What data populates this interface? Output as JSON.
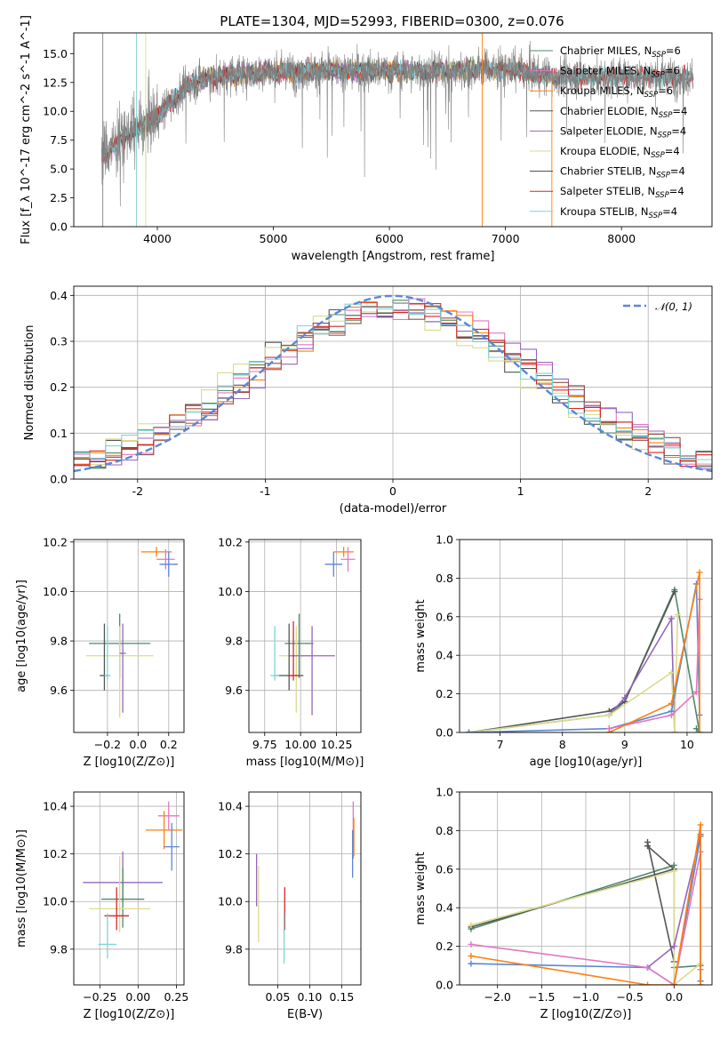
{
  "figure": {
    "title": "PLATE=1304, MJD=52993, FIBERID=0300, z=0.076"
  },
  "chart_data": [
    {
      "id": "spectrum",
      "type": "line",
      "xlabel": "wavelength [Angstrom, rest frame]",
      "ylabel": "Flux [f_λ 10^-17 erg cm^-2 s^-1 A^-1]",
      "xlim": [
        3280,
        8780
      ],
      "ylim": [
        0,
        16.8
      ],
      "xticks": [
        4000,
        5000,
        6000,
        7000,
        8000
      ],
      "yticks": [
        0.0,
        2.5,
        5.0,
        7.5,
        10.0,
        12.5,
        15.0
      ],
      "grid": false,
      "legend_position": "top-right",
      "continuum": {
        "x": [
          3520,
          3600,
          3700,
          3800,
          3900,
          4000,
          4100,
          4200,
          4300,
          4500,
          4700,
          5000,
          5300,
          5600,
          6000,
          6400,
          6800,
          7100,
          7300,
          7400
        ],
        "y": [
          6.0,
          6.8,
          7.8,
          8.3,
          8.9,
          9.6,
          10.6,
          11.6,
          12.5,
          13.0,
          13.2,
          13.4,
          13.5,
          13.5,
          13.5,
          13.5,
          13.7,
          13.6,
          13.2,
          13.0
        ]
      },
      "data_spectrum": {
        "name": "observed",
        "x_range": [
          3520,
          8620
        ],
        "color": "#808080"
      },
      "series": [
        {
          "name": "Chabrier MILES, N_SSP=6",
          "color": "#4d8a6b",
          "x_range": [
            3520,
            7410
          ]
        },
        {
          "name": "Salpeter MILES, N_SSP=6",
          "color": "#e377c2",
          "x_range": [
            3520,
            7410
          ]
        },
        {
          "name": "Kroupa MILES, N_SSP=6",
          "color": "#ff7f0e",
          "x_range": [
            3520,
            7410
          ]
        },
        {
          "name": "Chabrier ELODIE, N_SSP=4",
          "color": "#555555",
          "x_range": [
            3900,
            6800
          ]
        },
        {
          "name": "Salpeter ELODIE, N_SSP=4",
          "color": "#9467bd",
          "x_range": [
            3900,
            6800
          ]
        },
        {
          "name": "Kroupa ELODIE, N_SSP=4",
          "color": "#dbdb8d",
          "x_range": [
            3900,
            6800
          ]
        },
        {
          "name": "Chabrier STELIB, N_SSP=4",
          "color": "#444444",
          "x_range": [
            3520,
            8620
          ]
        },
        {
          "name": "Salpeter STELIB, N_SSP=4",
          "color": "#d62728",
          "x_range": [
            3520,
            8620
          ]
        },
        {
          "name": "Kroupa STELIB, N_SSP=4",
          "color": "#7fd4d8",
          "x_range": [
            3520,
            8620
          ]
        }
      ]
    },
    {
      "id": "residuals",
      "type": "histogram",
      "xlabel": "(data-model)/error",
      "ylabel": "Normed distribution",
      "xlim": [
        -2.5,
        2.5
      ],
      "ylim": [
        0,
        0.42
      ],
      "xticks": [
        -2,
        -1,
        0,
        1,
        2
      ],
      "yticks": [
        0.0,
        0.1,
        0.2,
        0.3,
        0.4
      ],
      "grid": true,
      "legend_position": "top-right",
      "reference_curve": {
        "name": "𝒩(0, 1)",
        "mean": 0,
        "sigma": 1,
        "color": "#5a87d6"
      },
      "bin_edges_range": [
        -2.5,
        2.5
      ],
      "bin_count": 40,
      "series": [
        {
          "color": "#4d8a6b",
          "shift": 0.0
        },
        {
          "color": "#e377c2",
          "shift": 0.1
        },
        {
          "color": "#ff7f0e",
          "shift": 0.05
        },
        {
          "color": "#555555",
          "shift": -0.05
        },
        {
          "color": "#9467bd",
          "shift": 0.12
        },
        {
          "color": "#dbdb8d",
          "shift": -0.1
        },
        {
          "color": "#8c564b",
          "shift": 0.08
        },
        {
          "color": "#d62728",
          "shift": 0.03
        },
        {
          "color": "#7fd4d8",
          "shift": -0.02
        }
      ]
    },
    {
      "id": "age-vs-Z",
      "type": "errorbar",
      "xlabel": "Z [log10(Z/Z⊙)]",
      "ylabel": "age [log10(age/yr)]",
      "xlim": [
        -0.42,
        0.3
      ],
      "ylim": [
        9.43,
        10.21
      ],
      "xticks": [
        -0.2,
        0.0,
        0.2
      ],
      "xticklabels": [
        "−0.2",
        "0.0",
        "0.2"
      ],
      "yticks": [
        9.6,
        9.8,
        10.0,
        10.2
      ],
      "grid": true,
      "points": [
        {
          "x": 0.12,
          "xerr": [
            0.1,
            0.1
          ],
          "y": 10.16,
          "yerr": [
            0.02,
            0.02
          ],
          "color": "#ff7f0e"
        },
        {
          "x": 0.18,
          "xerr": [
            0.06,
            0.06
          ],
          "y": 10.13,
          "yerr": [
            0.04,
            0.04
          ],
          "color": "#e377c2"
        },
        {
          "x": 0.2,
          "xerr": [
            0.06,
            0.06
          ],
          "y": 10.11,
          "yerr": [
            0.05,
            0.05
          ],
          "color": "#5a87d6"
        },
        {
          "x": -0.12,
          "xerr": [
            0.2,
            0.2
          ],
          "y": 9.79,
          "yerr": [
            0.14,
            0.12
          ],
          "color": "#4d8a6b"
        },
        {
          "x": -0.12,
          "xerr": [
            0.22,
            0.22
          ],
          "y": 9.74,
          "yerr": [
            0.25,
            0.12
          ],
          "color": "#dbdb8d"
        },
        {
          "x": -0.1,
          "xerr": [
            0.02,
            0.02
          ],
          "y": 9.75,
          "yerr": [
            0.24,
            0.12
          ],
          "color": "#9467bd"
        },
        {
          "x": -0.22,
          "xerr": [
            0.03,
            0.03
          ],
          "y": 9.66,
          "yerr": [
            0.06,
            0.21
          ],
          "color": "#555555"
        },
        {
          "x": -0.2,
          "xerr": [
            0.02,
            0.02
          ],
          "y": 9.66,
          "yerr": [
            0.02,
            0.2
          ],
          "color": "#7fd4d8"
        }
      ]
    },
    {
      "id": "age-vs-mass",
      "type": "errorbar",
      "xlabel": "mass [log10(M/M⊙)]",
      "ylabel": "",
      "xlim": [
        9.64,
        10.42
      ],
      "ylim": [
        9.43,
        10.21
      ],
      "xticks": [
        9.75,
        10.0,
        10.25
      ],
      "xticklabels": [
        "9.75",
        "10.00",
        "10.25"
      ],
      "yticks": [
        9.6,
        9.8,
        10.0,
        10.2
      ],
      "grid": true,
      "points": [
        {
          "x": 10.3,
          "xerr": [
            0.07,
            0.07
          ],
          "y": 10.16,
          "yerr": [
            0.02,
            0.02
          ],
          "color": "#ff7f0e"
        },
        {
          "x": 10.33,
          "xerr": [
            0.05,
            0.05
          ],
          "y": 10.13,
          "yerr": [
            0.05,
            0.05
          ],
          "color": "#e377c2"
        },
        {
          "x": 10.23,
          "xerr": [
            0.06,
            0.06
          ],
          "y": 10.11,
          "yerr": [
            0.05,
            0.05
          ],
          "color": "#5a87d6"
        },
        {
          "x": 9.99,
          "xerr": [
            0.1,
            0.1
          ],
          "y": 9.79,
          "yerr": [
            0.14,
            0.12
          ],
          "color": "#4d8a6b"
        },
        {
          "x": 9.97,
          "xerr": [
            0.12,
            0.12
          ],
          "y": 9.74,
          "yerr": [
            0.23,
            0.12
          ],
          "color": "#dbdb8d"
        },
        {
          "x": 10.08,
          "xerr": [
            0.16,
            0.16
          ],
          "y": 9.74,
          "yerr": [
            0.24,
            0.12
          ],
          "color": "#9467bd"
        },
        {
          "x": 9.92,
          "xerr": [
            0.1,
            0.1
          ],
          "y": 9.66,
          "yerr": [
            0.06,
            0.21
          ],
          "color": "#555555"
        },
        {
          "x": 9.95,
          "xerr": [
            0.04,
            0.04
          ],
          "y": 9.66,
          "yerr": [
            0.02,
            0.22
          ],
          "color": "#d62728"
        },
        {
          "x": 9.82,
          "xerr": [
            0.03,
            0.03
          ],
          "y": 9.66,
          "yerr": [
            0.02,
            0.2
          ],
          "color": "#7fd4d8"
        }
      ]
    },
    {
      "id": "weight-vs-age",
      "type": "line",
      "xlabel": "age [log10(age/yr)]",
      "ylabel": "mass weight",
      "xlim": [
        6.35,
        10.4
      ],
      "ylim": [
        0,
        1
      ],
      "xticks": [
        7,
        8,
        9,
        10
      ],
      "yticks": [
        0.0,
        0.2,
        0.4,
        0.6,
        0.8,
        1.0
      ],
      "grid": true,
      "series": [
        {
          "color": "#4d8a6b",
          "x": [
            6.5,
            8.75,
            9.0,
            9.8,
            10.2,
            10.15
          ],
          "y": [
            0.0,
            0.09,
            0.16,
            0.74,
            0.0,
            0.02
          ]
        },
        {
          "color": "#555555",
          "x": [
            6.5,
            8.75,
            9.0,
            9.8
          ],
          "y": [
            0.0,
            0.11,
            0.16,
            0.73
          ]
        },
        {
          "color": "#9467bd",
          "x": [
            8.75,
            9.0,
            9.75,
            9.8
          ],
          "y": [
            0.09,
            0.18,
            0.59,
            0.0
          ]
        },
        {
          "color": "#dbdb8d",
          "x": [
            6.5,
            8.75,
            9.75,
            9.8,
            9.85
          ],
          "y": [
            0.0,
            0.09,
            0.31,
            0.0,
            0.61
          ]
        },
        {
          "color": "#5a87d6",
          "x": [
            6.5,
            8.75,
            9.75,
            10.15,
            10.2
          ],
          "y": [
            0.0,
            0.02,
            0.11,
            0.77,
            0.09
          ]
        },
        {
          "color": "#e377c2",
          "x": [
            8.75,
            9.75,
            10.15,
            10.2
          ],
          "y": [
            0.02,
            0.09,
            0.21,
            0.69
          ]
        },
        {
          "color": "#ff7f0e",
          "x": [
            8.75,
            9.75,
            10.2,
            10.2
          ],
          "y": [
            0.0,
            0.15,
            0.83,
            0.0
          ]
        }
      ]
    },
    {
      "id": "mass-vs-Z",
      "type": "errorbar",
      "xlabel": "Z [log10(Z/Z⊙)]",
      "ylabel": "mass [log10(M/M⊙)]",
      "xlim": [
        -0.42,
        0.3
      ],
      "ylim": [
        9.65,
        10.46
      ],
      "xticks": [
        -0.25,
        0.0,
        0.25
      ],
      "xticklabels": [
        "−0.25",
        "0.00",
        "0.25"
      ],
      "yticks": [
        9.8,
        10.0,
        10.2,
        10.4
      ],
      "grid": true,
      "points": [
        {
          "x": 0.2,
          "xerr": [
            0.07,
            0.07
          ],
          "y": 10.36,
          "yerr": [
            0.06,
            0.06
          ],
          "color": "#e377c2"
        },
        {
          "x": 0.17,
          "xerr": [
            0.12,
            0.12
          ],
          "y": 10.3,
          "yerr": [
            0.08,
            0.08
          ],
          "color": "#ff7f0e"
        },
        {
          "x": 0.22,
          "xerr": [
            0.05,
            0.05
          ],
          "y": 10.23,
          "yerr": [
            0.1,
            0.1
          ],
          "color": "#5a87d6"
        },
        {
          "x": -0.1,
          "xerr": [
            0.26,
            0.26
          ],
          "y": 10.08,
          "yerr": [
            0.08,
            0.13
          ],
          "color": "#9467bd"
        },
        {
          "x": -0.1,
          "xerr": [
            0.14,
            0.14
          ],
          "y": 10.01,
          "yerr": [
            0.12,
            0.13
          ],
          "color": "#4d8a6b"
        },
        {
          "x": -0.12,
          "xerr": [
            0.2,
            0.2
          ],
          "y": 9.97,
          "yerr": [
            0.1,
            0.22
          ],
          "color": "#dbdb8d"
        },
        {
          "x": -0.14,
          "xerr": [
            0.08,
            0.08
          ],
          "y": 9.94,
          "yerr": [
            0.06,
            0.12
          ],
          "color": "#d62728"
        },
        {
          "x": -0.2,
          "xerr": [
            0.06,
            0.06
          ],
          "y": 9.82,
          "yerr": [
            0.06,
            0.13
          ],
          "color": "#7fd4d8"
        }
      ]
    },
    {
      "id": "mass-vs-ebv",
      "type": "errorbar",
      "xlabel": "E(B-V)",
      "ylabel": "",
      "xlim": [
        0.005,
        0.18
      ],
      "ylim": [
        9.65,
        10.46
      ],
      "xticks": [
        0.05,
        0.1,
        0.15
      ],
      "xticklabels": [
        "0.05",
        "0.10",
        "0.15"
      ],
      "yticks": [
        9.8,
        10.0,
        10.2,
        10.4
      ],
      "grid": true,
      "points": [
        {
          "x": 0.168,
          "y": 10.3,
          "yerr": [
            0.12,
            0.12
          ],
          "color": "#e377c2"
        },
        {
          "x": 0.169,
          "y": 10.27,
          "yerr": [
            0.08,
            0.08
          ],
          "color": "#ff7f0e"
        },
        {
          "x": 0.167,
          "y": 10.2,
          "yerr": [
            0.1,
            0.1
          ],
          "color": "#5a87d6"
        },
        {
          "x": 0.017,
          "y": 10.07,
          "yerr": [
            0.09,
            0.13
          ],
          "color": "#9467bd"
        },
        {
          "x": 0.02,
          "y": 9.95,
          "yerr": [
            0.12,
            0.2
          ],
          "color": "#dbdb8d"
        },
        {
          "x": 0.061,
          "y": 9.94,
          "yerr": [
            0.06,
            0.12
          ],
          "color": "#d62728"
        },
        {
          "x": 0.06,
          "y": 9.82,
          "yerr": [
            0.08,
            0.13
          ],
          "color": "#7fd4d8"
        }
      ]
    },
    {
      "id": "weight-vs-Z",
      "type": "line",
      "xlabel": "Z [log10(Z/Z⊙)]",
      "ylabel": "mass weight",
      "xlim": [
        -2.43,
        0.43
      ],
      "ylim": [
        0,
        1
      ],
      "xticks": [
        -2.0,
        -1.5,
        -1.0,
        -0.5,
        0.0
      ],
      "xticklabels": [
        "−2.0",
        "−1.5",
        "−1.0",
        "−0.5",
        "0.0"
      ],
      "yticks": [
        0.0,
        0.2,
        0.4,
        0.6,
        0.8,
        1.0
      ],
      "grid": true,
      "series": [
        {
          "color": "#4d8a6b",
          "x": [
            -2.3,
            0.0,
            0.0,
            0.3,
            0.3
          ],
          "y": [
            0.29,
            0.62,
            0.09,
            0.1,
            0.02
          ]
        },
        {
          "color": "#555555",
          "x": [
            -2.3,
            0.0,
            -0.3,
            -0.3,
            0.0
          ],
          "y": [
            0.3,
            0.6,
            0.72,
            0.74,
            0.12
          ]
        },
        {
          "color": "#dbdb8d",
          "x": [
            -2.3,
            0.0,
            0.0,
            0.3
          ],
          "y": [
            0.31,
            0.59,
            0.0,
            0.11
          ]
        },
        {
          "color": "#9467bd",
          "x": [
            -0.3,
            0.0,
            0.3
          ],
          "y": [
            0.09,
            0.2,
            0.78
          ]
        },
        {
          "color": "#5a87d6",
          "x": [
            -2.3,
            -0.3,
            0.0,
            0.3,
            0.3
          ],
          "y": [
            0.11,
            0.09,
            0.0,
            0.77,
            0.02
          ]
        },
        {
          "color": "#e377c2",
          "x": [
            -2.3,
            -0.3,
            0.0,
            0.3,
            0.3
          ],
          "y": [
            0.21,
            0.09,
            0.0,
            0.69,
            0.08
          ]
        },
        {
          "color": "#ff7f0e",
          "x": [
            -2.3,
            -0.3,
            0.0,
            0.3,
            0.3
          ],
          "y": [
            0.15,
            0.0,
            0.0,
            0.83,
            0.0
          ]
        }
      ]
    }
  ]
}
